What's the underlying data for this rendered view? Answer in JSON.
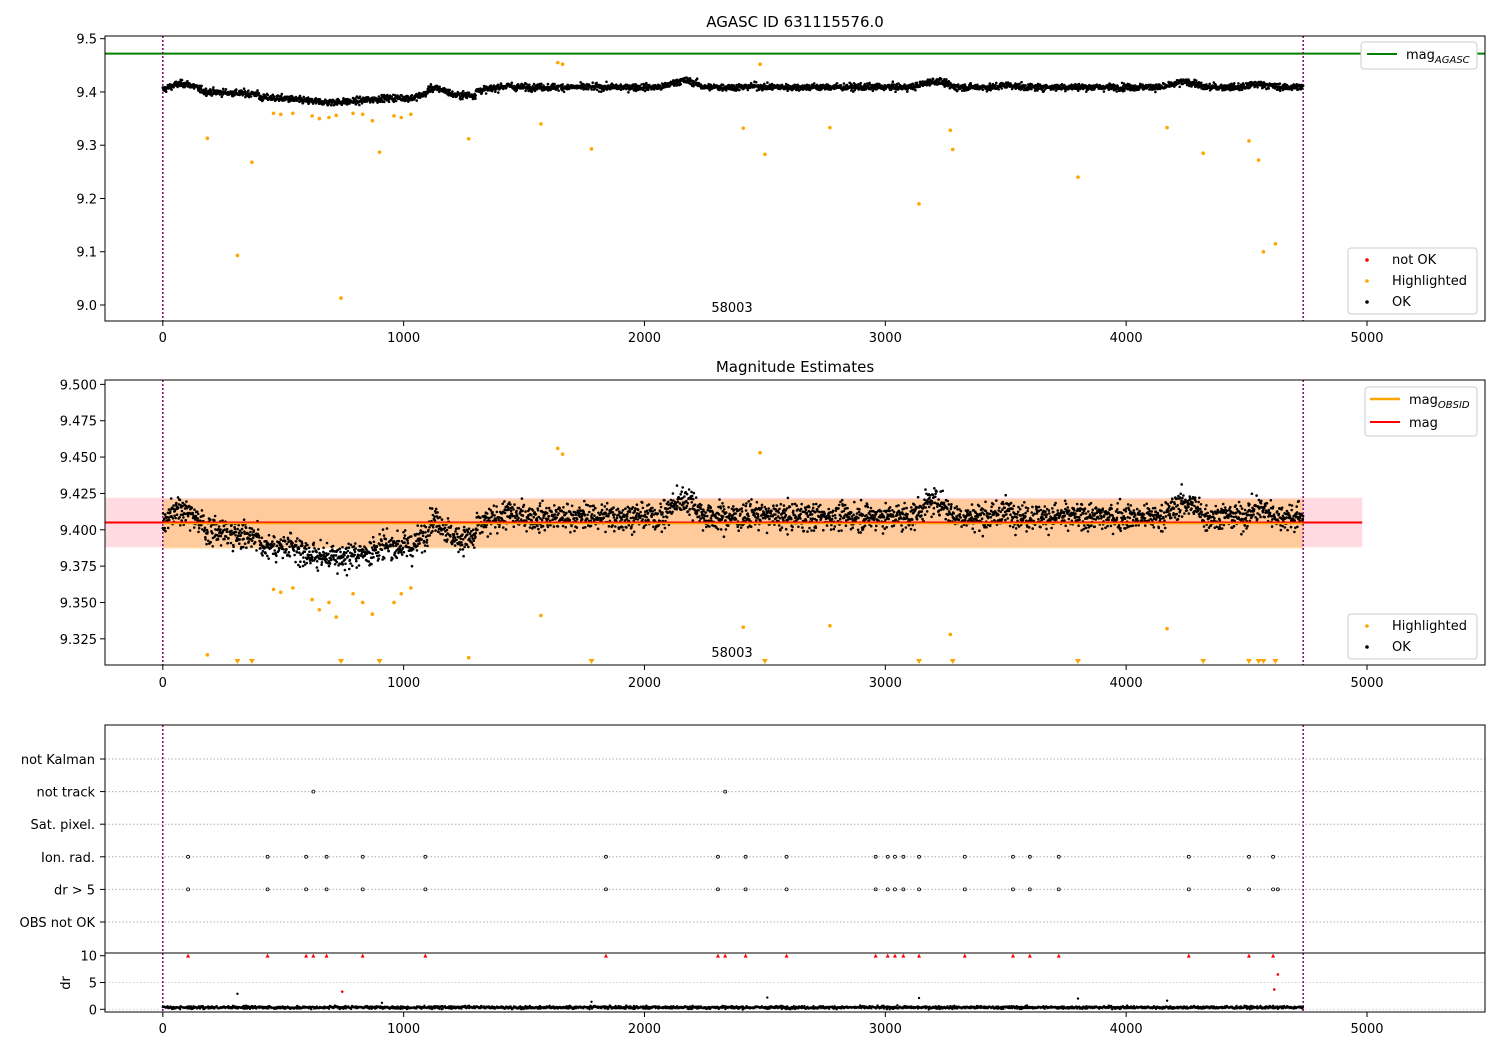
{
  "figure": {
    "annotation": "58003",
    "x_ticks": [
      0,
      1000,
      2000,
      3000,
      4000,
      5000
    ],
    "xlim": [
      -240,
      5490
    ],
    "obs_span": [
      0,
      4735
    ],
    "colors": {
      "ok": "#000000",
      "highlighted": "#ffa500",
      "not_ok": "#ff0000",
      "agasc": "#008000",
      "mag": "#ff0000",
      "mag_obsid": "#ffa500",
      "band": "#ffb6c1",
      "obs_line": "#800080"
    }
  },
  "chart_data": [
    {
      "type": "scatter",
      "title": "AGASC ID 631115576.0",
      "ylim": [
        8.97,
        9.505
      ],
      "y_ticks": [
        "9.0",
        "9.1",
        "9.2",
        "9.3",
        "9.4",
        "9.5"
      ],
      "reference_line": {
        "name": "mag",
        "subscript": "AGASC",
        "y": 9.472
      },
      "legend_lines": [
        {
          "label": "mag",
          "subscript": "AGASC"
        }
      ],
      "legend_points": [
        "not OK",
        "Highlighted",
        "OK"
      ],
      "series": [
        {
          "name": "OK",
          "description": "dense band of points",
          "x_range": [
            0,
            4735
          ],
          "y_center_range": [
            9.37,
            9.415
          ]
        },
        {
          "name": "Highlighted",
          "points": [
            [
              185,
              9.313
            ],
            [
              310,
              9.093
            ],
            [
              370,
              9.268
            ],
            [
              740,
              9.013
            ],
            [
              900,
              9.287
            ],
            [
              1270,
              9.312
            ],
            [
              1570,
              9.34
            ],
            [
              1640,
              9.455
            ],
            [
              1660,
              9.452
            ],
            [
              1780,
              9.293
            ],
            [
              2410,
              9.332
            ],
            [
              2480,
              9.452
            ],
            [
              2500,
              9.283
            ],
            [
              2770,
              9.333
            ],
            [
              3140,
              9.19
            ],
            [
              3270,
              9.328
            ],
            [
              3280,
              9.292
            ],
            [
              3800,
              9.24
            ],
            [
              4170,
              9.333
            ],
            [
              4320,
              9.285
            ],
            [
              4510,
              9.308
            ],
            [
              4550,
              9.272
            ],
            [
              4570,
              9.1
            ],
            [
              4620,
              9.115
            ],
            [
              460,
              9.36
            ],
            [
              490,
              9.358
            ],
            [
              540,
              9.36
            ],
            [
              620,
              9.355
            ],
            [
              650,
              9.35
            ],
            [
              690,
              9.352
            ],
            [
              720,
              9.356
            ],
            [
              790,
              9.36
            ],
            [
              830,
              9.358
            ],
            [
              870,
              9.346
            ],
            [
              960,
              9.355
            ],
            [
              990,
              9.352
            ],
            [
              1030,
              9.358
            ]
          ]
        },
        {
          "name": "not OK",
          "points": []
        }
      ]
    },
    {
      "type": "scatter",
      "title": "Magnitude Estimates",
      "ylim": [
        9.307,
        9.503
      ],
      "y_ticks": [
        "9.325",
        "9.350",
        "9.375",
        "9.400",
        "9.425",
        "9.450",
        "9.475",
        "9.500"
      ],
      "mag_line": {
        "name": "mag",
        "y": 9.405,
        "band": [
          9.388,
          9.422
        ],
        "x_end": 4980
      },
      "mag_obsid_band": [
        9.387,
        9.421
      ],
      "legend_lines": [
        {
          "label": "mag",
          "subscript": "OBSID"
        },
        {
          "label": "mag",
          "subscript": ""
        }
      ],
      "legend_points": [
        "Highlighted",
        "OK"
      ],
      "below_axis_markers_x": [
        310,
        370,
        740,
        900,
        1780,
        2500,
        3140,
        3280,
        3800,
        4320,
        4510,
        4550,
        4570,
        4620
      ],
      "series": [
        {
          "name": "OK",
          "description": "dense band of points",
          "x_range": [
            0,
            4735
          ],
          "y_center_range": [
            9.37,
            9.42
          ]
        },
        {
          "name": "Highlighted",
          "points": [
            [
              185,
              9.314
            ],
            [
              1270,
              9.312
            ],
            [
              1570,
              9.341
            ],
            [
              1640,
              9.456
            ],
            [
              1660,
              9.452
            ],
            [
              2410,
              9.333
            ],
            [
              2480,
              9.453
            ],
            [
              2770,
              9.334
            ],
            [
              3270,
              9.328
            ],
            [
              4170,
              9.332
            ],
            [
              460,
              9.359
            ],
            [
              490,
              9.357
            ],
            [
              540,
              9.36
            ],
            [
              620,
              9.352
            ],
            [
              650,
              9.345
            ],
            [
              690,
              9.35
            ],
            [
              720,
              9.34
            ],
            [
              790,
              9.356
            ],
            [
              830,
              9.35
            ],
            [
              870,
              9.342
            ],
            [
              960,
              9.35
            ],
            [
              990,
              9.356
            ],
            [
              1030,
              9.36
            ]
          ]
        }
      ]
    },
    {
      "type": "scatter",
      "title": "",
      "categories": [
        "not Kalman",
        "not track",
        "Sat. pixel.",
        "Ion. rad.",
        "dr > 5",
        "OBS not OK"
      ],
      "flag_points": {
        "not track": [
          625,
          2335
        ],
        "Ion. rad.": [
          105,
          435,
          595,
          680,
          830,
          1090,
          1840,
          2305,
          2420,
          2590,
          2960,
          3010,
          3040,
          3075,
          3140,
          3330,
          3530,
          3600,
          3720,
          4260,
          4510,
          4610
        ],
        "dr > 5": [
          105,
          435,
          595,
          680,
          830,
          1090,
          1840,
          2305,
          2420,
          2590,
          2960,
          3010,
          3040,
          3075,
          3140,
          3330,
          3530,
          3600,
          3720,
          4260,
          4510,
          4610,
          4630
        ]
      }
    },
    {
      "type": "scatter",
      "title": "",
      "ylabel": "dr",
      "ylim": [
        -0.5,
        10.5
      ],
      "y_ticks": [
        "0",
        "5",
        "10"
      ],
      "not_ok_at_10": [
        105,
        435,
        595,
        625,
        680,
        830,
        1090,
        1840,
        2305,
        2335,
        2420,
        2590,
        2960,
        3010,
        3040,
        3075,
        3140,
        3330,
        3530,
        3600,
        3720,
        4260,
        4510,
        4610
      ],
      "not_ok_points": [
        [
          745,
          3.3
        ],
        [
          4615,
          3.7
        ],
        [
          4630,
          6.5
        ]
      ],
      "outlier_points": [
        [
          310,
          2.9
        ],
        [
          3140,
          2.1
        ],
        [
          2510,
          2.2
        ],
        [
          3800,
          2.0
        ],
        [
          4170,
          1.6
        ],
        [
          1780,
          1.4
        ],
        [
          910,
          1.2
        ]
      ]
    }
  ]
}
